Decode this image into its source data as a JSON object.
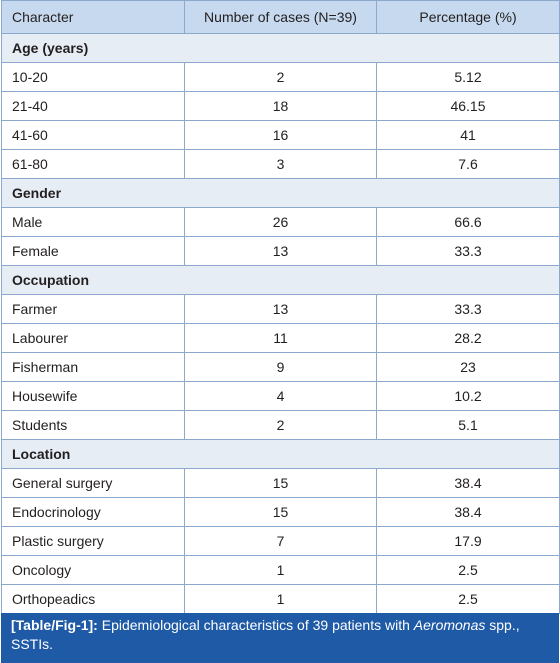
{
  "table": {
    "columns": [
      "Character",
      "Number of cases (N=39)",
      "Percentage (%)"
    ],
    "sections": [
      {
        "title": "Age (years)",
        "rows": [
          [
            "10-20",
            "2",
            "5.12"
          ],
          [
            "21-40",
            "18",
            "46.15"
          ],
          [
            "41-60",
            "16",
            "41"
          ],
          [
            "61-80",
            "3",
            "7.6"
          ]
        ]
      },
      {
        "title": "Gender",
        "rows": [
          [
            "Male",
            "26",
            "66.6"
          ],
          [
            "Female",
            "13",
            "33.3"
          ]
        ]
      },
      {
        "title": "Occupation",
        "rows": [
          [
            "Farmer",
            "13",
            "33.3"
          ],
          [
            "Labourer",
            "11",
            "28.2"
          ],
          [
            "Fisherman",
            "9",
            "23"
          ],
          [
            "Housewife",
            "4",
            "10.2"
          ],
          [
            "Students",
            "2",
            "5.1"
          ]
        ]
      },
      {
        "title": "Location",
        "rows": [
          [
            "General surgery",
            "15",
            "38.4"
          ],
          [
            "Endocrinology",
            "15",
            "38.4"
          ],
          [
            "Plastic surgery",
            "7",
            "17.9"
          ],
          [
            "Oncology",
            "1",
            "2.5"
          ],
          [
            "Orthopeadics",
            "1",
            "2.5"
          ]
        ]
      }
    ]
  },
  "caption": {
    "label": "[Table/Fig-1]:",
    "text_before": "Epidemiological characteristics of 39 patients with",
    "italic": "Aeromonas",
    "text_after": "spp., SSTIs."
  }
}
